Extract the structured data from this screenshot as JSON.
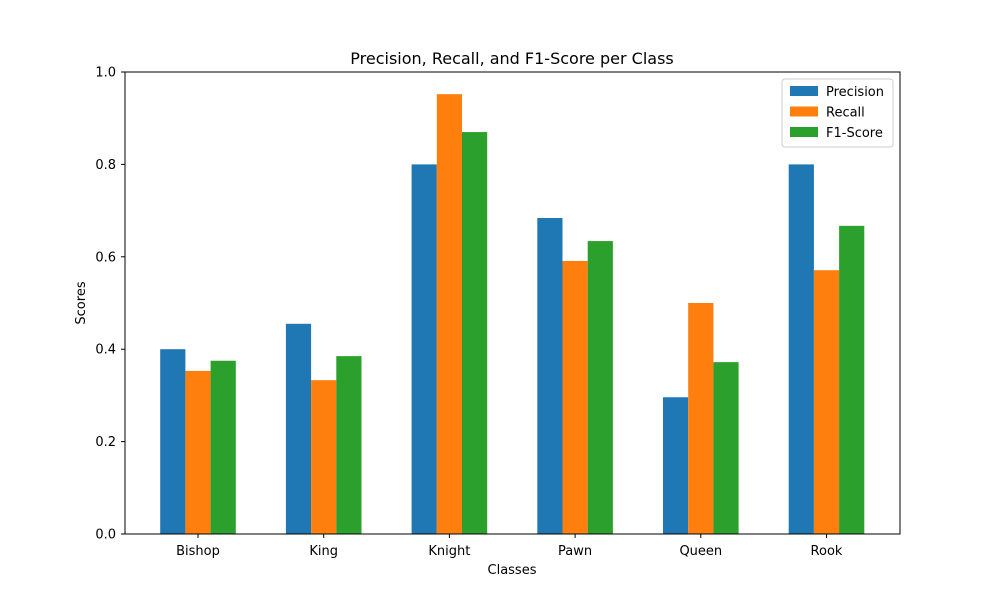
{
  "chart_data": {
    "type": "bar",
    "title": "Precision, Recall, and F1-Score per Class",
    "xlabel": "Classes",
    "ylabel": "Scores",
    "categories": [
      "Bishop",
      "King",
      "Knight",
      "Pawn",
      "Queen",
      "Rook"
    ],
    "series": [
      {
        "name": "Precision",
        "color": "#1f77b4",
        "values": [
          0.4,
          0.455,
          0.8,
          0.684,
          0.296,
          0.8
        ]
      },
      {
        "name": "Recall",
        "color": "#ff7f0e",
        "values": [
          0.353,
          0.333,
          0.952,
          0.591,
          0.5,
          0.571
        ]
      },
      {
        "name": "F1-Score",
        "color": "#2ca02c",
        "values": [
          0.375,
          0.385,
          0.87,
          0.634,
          0.372,
          0.667
        ]
      }
    ],
    "ylim": [
      0,
      1.0
    ],
    "yticks": [
      "0.0",
      "0.2",
      "0.4",
      "0.6",
      "0.8",
      "1.0"
    ],
    "grid": false,
    "legend_position": "top-right"
  }
}
